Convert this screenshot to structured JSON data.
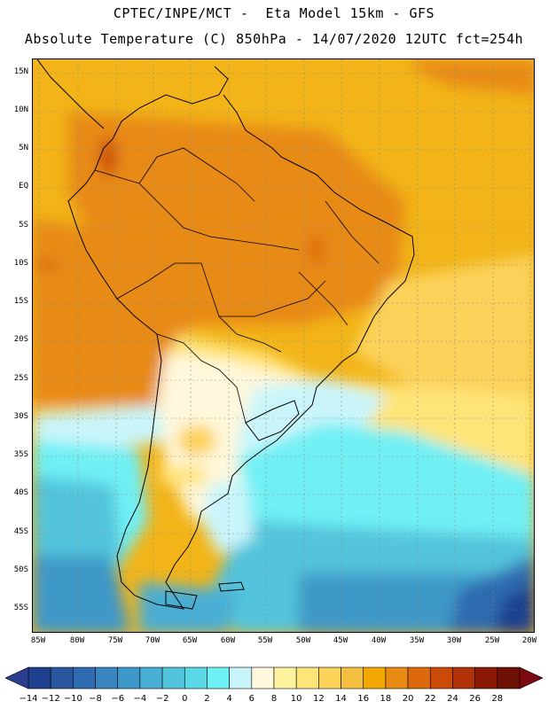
{
  "header": {
    "line1": "CPTEC/INPE/MCT -  Eta Model 15km - GFS",
    "line2": "Absolute Temperature (C) 850hPa - 14/07/2020 12UTC fct=254h"
  },
  "map": {
    "lat_ticks": [
      "15N",
      "10N",
      "5N",
      "EQ",
      "5S",
      "10S",
      "15S",
      "20S",
      "25S",
      "30S",
      "35S",
      "40S",
      "45S",
      "50S",
      "55S"
    ],
    "lon_ticks": [
      "85W",
      "80W",
      "75W",
      "70W",
      "65W",
      "60W",
      "55W",
      "50W",
      "45W",
      "40W",
      "35W",
      "30W",
      "25W",
      "20W"
    ],
    "grid": true
  },
  "colorbar": {
    "labels": [
      "-14",
      "-12",
      "-10",
      "-8",
      "-6",
      "-4",
      "-2",
      "0",
      "2",
      "4",
      "6",
      "8",
      "10",
      "12",
      "14",
      "16",
      "18",
      "20",
      "22",
      "24",
      "26",
      "28"
    ],
    "colors": [
      "#1f3f8f",
      "#2a56a0",
      "#2f6bb0",
      "#3a84c0",
      "#3c98c8",
      "#48aed4",
      "#52c4dc",
      "#5ad8e6",
      "#6ff0f5",
      "#c9f5fa",
      "#fff8dc",
      "#fff3a0",
      "#ffe478",
      "#fcd25a",
      "#f5c040",
      "#f2a800",
      "#e88a14",
      "#dc6a0c",
      "#cc4a08",
      "#b03008",
      "#8a1a06",
      "#6e1004"
    ]
  }
}
